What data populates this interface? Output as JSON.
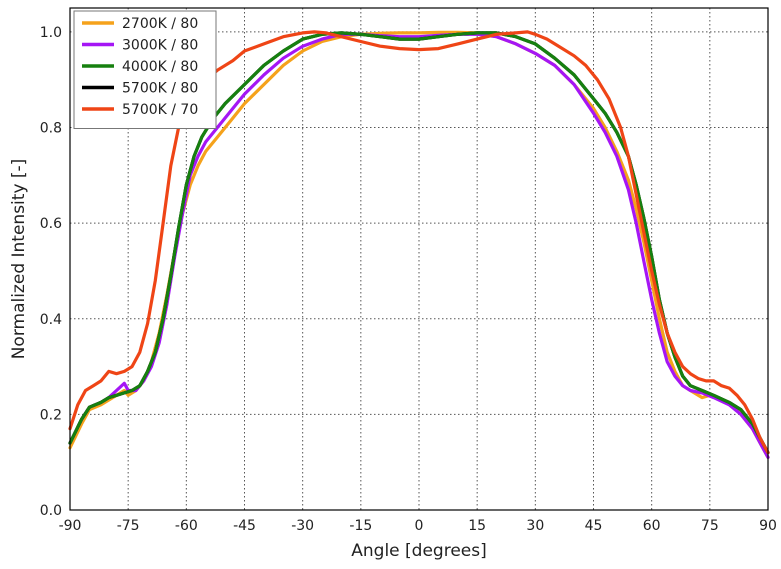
{
  "chart_data": {
    "type": "line",
    "xlabel": "Angle [degrees]",
    "ylabel": "Normalized Intensity [-]",
    "xlim": [
      -90,
      90
    ],
    "ylim": [
      0.0,
      1.05
    ],
    "xticks": [
      -90,
      -75,
      -60,
      -45,
      -30,
      -15,
      0,
      15,
      30,
      45,
      60,
      75,
      90
    ],
    "yticks": [
      "0.0",
      "0.2",
      "0.4",
      "0.6",
      "0.8",
      "1.0"
    ],
    "grid": true,
    "legend_position": "top-left",
    "series": [
      {
        "name": "2700K / 80",
        "color": "#f5a21b",
        "points": [
          [
            -90,
            0.13
          ],
          [
            -87,
            0.18
          ],
          [
            -85,
            0.21
          ],
          [
            -82,
            0.22
          ],
          [
            -80,
            0.23
          ],
          [
            -78,
            0.24
          ],
          [
            -76,
            0.25
          ],
          [
            -75,
            0.24
          ],
          [
            -73,
            0.25
          ],
          [
            -71,
            0.27
          ],
          [
            -69,
            0.31
          ],
          [
            -67,
            0.37
          ],
          [
            -65,
            0.45
          ],
          [
            -63,
            0.54
          ],
          [
            -61,
            0.62
          ],
          [
            -59,
            0.68
          ],
          [
            -57,
            0.72
          ],
          [
            -55,
            0.75
          ],
          [
            -52,
            0.78
          ],
          [
            -48,
            0.82
          ],
          [
            -45,
            0.85
          ],
          [
            -40,
            0.89
          ],
          [
            -35,
            0.93
          ],
          [
            -30,
            0.96
          ],
          [
            -25,
            0.98
          ],
          [
            -20,
            0.99
          ],
          [
            -15,
            0.995
          ],
          [
            -10,
            0.997
          ],
          [
            -5,
            0.998
          ],
          [
            0,
            0.998
          ],
          [
            5,
            0.999
          ],
          [
            10,
            0.999
          ],
          [
            15,
            0.998
          ],
          [
            20,
            0.99
          ],
          [
            25,
            0.975
          ],
          [
            30,
            0.955
          ],
          [
            35,
            0.93
          ],
          [
            40,
            0.89
          ],
          [
            45,
            0.84
          ],
          [
            48,
            0.8
          ],
          [
            51,
            0.75
          ],
          [
            54,
            0.69
          ],
          [
            56,
            0.63
          ],
          [
            58,
            0.56
          ],
          [
            60,
            0.48
          ],
          [
            62,
            0.4
          ],
          [
            64,
            0.33
          ],
          [
            66,
            0.29
          ],
          [
            68,
            0.26
          ],
          [
            70,
            0.25
          ],
          [
            72,
            0.24
          ],
          [
            73,
            0.235
          ],
          [
            75,
            0.24
          ],
          [
            77,
            0.235
          ],
          [
            80,
            0.225
          ],
          [
            83,
            0.2
          ],
          [
            86,
            0.17
          ],
          [
            88,
            0.14
          ],
          [
            90,
            0.11
          ]
        ]
      },
      {
        "name": "3000K / 80",
        "color": "#a516f5",
        "points": [
          [
            -90,
            0.14
          ],
          [
            -87,
            0.19
          ],
          [
            -85,
            0.215
          ],
          [
            -82,
            0.225
          ],
          [
            -80,
            0.235
          ],
          [
            -78,
            0.25
          ],
          [
            -76,
            0.265
          ],
          [
            -75,
            0.25
          ],
          [
            -73,
            0.25
          ],
          [
            -71,
            0.27
          ],
          [
            -69,
            0.3
          ],
          [
            -67,
            0.35
          ],
          [
            -65,
            0.43
          ],
          [
            -63,
            0.53
          ],
          [
            -61,
            0.62
          ],
          [
            -59,
            0.7
          ],
          [
            -57,
            0.74
          ],
          [
            -55,
            0.77
          ],
          [
            -52,
            0.8
          ],
          [
            -48,
            0.84
          ],
          [
            -45,
            0.87
          ],
          [
            -40,
            0.91
          ],
          [
            -35,
            0.945
          ],
          [
            -30,
            0.97
          ],
          [
            -25,
            0.985
          ],
          [
            -20,
            0.995
          ],
          [
            -15,
            0.995
          ],
          [
            -10,
            0.992
          ],
          [
            -5,
            0.99
          ],
          [
            0,
            0.99
          ],
          [
            5,
            0.993
          ],
          [
            10,
            0.995
          ],
          [
            15,
            0.995
          ],
          [
            20,
            0.99
          ],
          [
            25,
            0.975
          ],
          [
            30,
            0.955
          ],
          [
            35,
            0.93
          ],
          [
            40,
            0.89
          ],
          [
            45,
            0.83
          ],
          [
            48,
            0.79
          ],
          [
            51,
            0.74
          ],
          [
            54,
            0.67
          ],
          [
            56,
            0.6
          ],
          [
            58,
            0.52
          ],
          [
            60,
            0.44
          ],
          [
            62,
            0.37
          ],
          [
            64,
            0.31
          ],
          [
            66,
            0.28
          ],
          [
            68,
            0.26
          ],
          [
            70,
            0.25
          ],
          [
            73,
            0.245
          ],
          [
            76,
            0.235
          ],
          [
            80,
            0.22
          ],
          [
            83,
            0.2
          ],
          [
            86,
            0.17
          ],
          [
            88,
            0.14
          ],
          [
            90,
            0.11
          ]
        ]
      },
      {
        "name": "4000K / 80",
        "color": "#16800f",
        "points": [
          [
            -90,
            0.14
          ],
          [
            -87,
            0.19
          ],
          [
            -85,
            0.215
          ],
          [
            -82,
            0.225
          ],
          [
            -80,
            0.235
          ],
          [
            -78,
            0.24
          ],
          [
            -76,
            0.245
          ],
          [
            -74,
            0.25
          ],
          [
            -72,
            0.26
          ],
          [
            -70,
            0.29
          ],
          [
            -68,
            0.33
          ],
          [
            -66,
            0.4
          ],
          [
            -64,
            0.49
          ],
          [
            -62,
            0.59
          ],
          [
            -60,
            0.68
          ],
          [
            -58,
            0.74
          ],
          [
            -56,
            0.78
          ],
          [
            -53,
            0.82
          ],
          [
            -50,
            0.85
          ],
          [
            -45,
            0.89
          ],
          [
            -40,
            0.93
          ],
          [
            -35,
            0.96
          ],
          [
            -30,
            0.985
          ],
          [
            -25,
            0.995
          ],
          [
            -20,
            0.998
          ],
          [
            -15,
            0.995
          ],
          [
            -10,
            0.99
          ],
          [
            -5,
            0.985
          ],
          [
            0,
            0.985
          ],
          [
            5,
            0.99
          ],
          [
            10,
            0.995
          ],
          [
            15,
            0.998
          ],
          [
            20,
            0.998
          ],
          [
            25,
            0.99
          ],
          [
            30,
            0.975
          ],
          [
            35,
            0.945
          ],
          [
            40,
            0.91
          ],
          [
            45,
            0.86
          ],
          [
            48,
            0.83
          ],
          [
            51,
            0.79
          ],
          [
            54,
            0.74
          ],
          [
            56,
            0.68
          ],
          [
            58,
            0.61
          ],
          [
            60,
            0.53
          ],
          [
            62,
            0.44
          ],
          [
            64,
            0.37
          ],
          [
            66,
            0.32
          ],
          [
            68,
            0.28
          ],
          [
            70,
            0.26
          ],
          [
            73,
            0.25
          ],
          [
            76,
            0.24
          ],
          [
            80,
            0.225
          ],
          [
            83,
            0.21
          ],
          [
            86,
            0.18
          ],
          [
            88,
            0.15
          ],
          [
            90,
            0.12
          ]
        ]
      },
      {
        "name": "5700K / 80",
        "color": "#000000",
        "points": [
          [
            -90,
            0.14
          ],
          [
            -87,
            0.19
          ],
          [
            -85,
            0.215
          ],
          [
            -82,
            0.225
          ],
          [
            -80,
            0.235
          ],
          [
            -78,
            0.24
          ],
          [
            -76,
            0.245
          ],
          [
            -74,
            0.25
          ],
          [
            -72,
            0.26
          ],
          [
            -70,
            0.29
          ],
          [
            -68,
            0.33
          ],
          [
            -66,
            0.4
          ],
          [
            -64,
            0.49
          ],
          [
            -62,
            0.59
          ],
          [
            -60,
            0.68
          ],
          [
            -58,
            0.74
          ],
          [
            -56,
            0.78
          ],
          [
            -53,
            0.82
          ],
          [
            -50,
            0.85
          ],
          [
            -45,
            0.89
          ],
          [
            -40,
            0.93
          ],
          [
            -35,
            0.96
          ],
          [
            -30,
            0.985
          ],
          [
            -25,
            0.995
          ],
          [
            -20,
            0.998
          ],
          [
            -15,
            0.995
          ],
          [
            -10,
            0.99
          ],
          [
            -5,
            0.985
          ],
          [
            0,
            0.985
          ],
          [
            5,
            0.99
          ],
          [
            10,
            0.995
          ],
          [
            15,
            0.998
          ],
          [
            20,
            0.998
          ],
          [
            25,
            0.99
          ],
          [
            30,
            0.975
          ],
          [
            35,
            0.945
          ],
          [
            40,
            0.91
          ],
          [
            45,
            0.86
          ],
          [
            48,
            0.83
          ],
          [
            51,
            0.79
          ],
          [
            54,
            0.74
          ],
          [
            56,
            0.68
          ],
          [
            58,
            0.61
          ],
          [
            60,
            0.53
          ],
          [
            62,
            0.44
          ],
          [
            64,
            0.37
          ],
          [
            66,
            0.32
          ],
          [
            68,
            0.28
          ],
          [
            70,
            0.26
          ],
          [
            73,
            0.25
          ],
          [
            76,
            0.24
          ],
          [
            80,
            0.225
          ],
          [
            83,
            0.21
          ],
          [
            86,
            0.18
          ],
          [
            88,
            0.15
          ],
          [
            90,
            0.12
          ]
        ]
      },
      {
        "name": "5700K / 70",
        "color": "#ef4516",
        "points": [
          [
            -90,
            0.17
          ],
          [
            -88,
            0.22
          ],
          [
            -86,
            0.25
          ],
          [
            -84,
            0.26
          ],
          [
            -82,
            0.27
          ],
          [
            -80,
            0.29
          ],
          [
            -78,
            0.285
          ],
          [
            -76,
            0.29
          ],
          [
            -74,
            0.3
          ],
          [
            -72,
            0.33
          ],
          [
            -70,
            0.39
          ],
          [
            -68,
            0.48
          ],
          [
            -66,
            0.6
          ],
          [
            -64,
            0.72
          ],
          [
            -62,
            0.8
          ],
          [
            -60,
            0.85
          ],
          [
            -58,
            0.88
          ],
          [
            -55,
            0.9
          ],
          [
            -52,
            0.92
          ],
          [
            -48,
            0.94
          ],
          [
            -45,
            0.96
          ],
          [
            -40,
            0.975
          ],
          [
            -35,
            0.99
          ],
          [
            -30,
            0.998
          ],
          [
            -27,
            1.0
          ],
          [
            -24,
            0.998
          ],
          [
            -20,
            0.99
          ],
          [
            -15,
            0.98
          ],
          [
            -10,
            0.97
          ],
          [
            -5,
            0.965
          ],
          [
            0,
            0.963
          ],
          [
            5,
            0.965
          ],
          [
            10,
            0.975
          ],
          [
            15,
            0.985
          ],
          [
            20,
            0.995
          ],
          [
            25,
            0.998
          ],
          [
            28,
            1.0
          ],
          [
            30,
            0.995
          ],
          [
            33,
            0.985
          ],
          [
            36,
            0.97
          ],
          [
            40,
            0.95
          ],
          [
            43,
            0.93
          ],
          [
            46,
            0.9
          ],
          [
            49,
            0.86
          ],
          [
            52,
            0.8
          ],
          [
            54,
            0.74
          ],
          [
            56,
            0.66
          ],
          [
            58,
            0.58
          ],
          [
            60,
            0.5
          ],
          [
            62,
            0.43
          ],
          [
            64,
            0.37
          ],
          [
            66,
            0.33
          ],
          [
            68,
            0.3
          ],
          [
            70,
            0.285
          ],
          [
            72,
            0.275
          ],
          [
            74,
            0.27
          ],
          [
            76,
            0.27
          ],
          [
            78,
            0.26
          ],
          [
            80,
            0.255
          ],
          [
            82,
            0.24
          ],
          [
            84,
            0.22
          ],
          [
            86,
            0.19
          ],
          [
            88,
            0.15
          ],
          [
            90,
            0.12
          ]
        ]
      }
    ]
  }
}
